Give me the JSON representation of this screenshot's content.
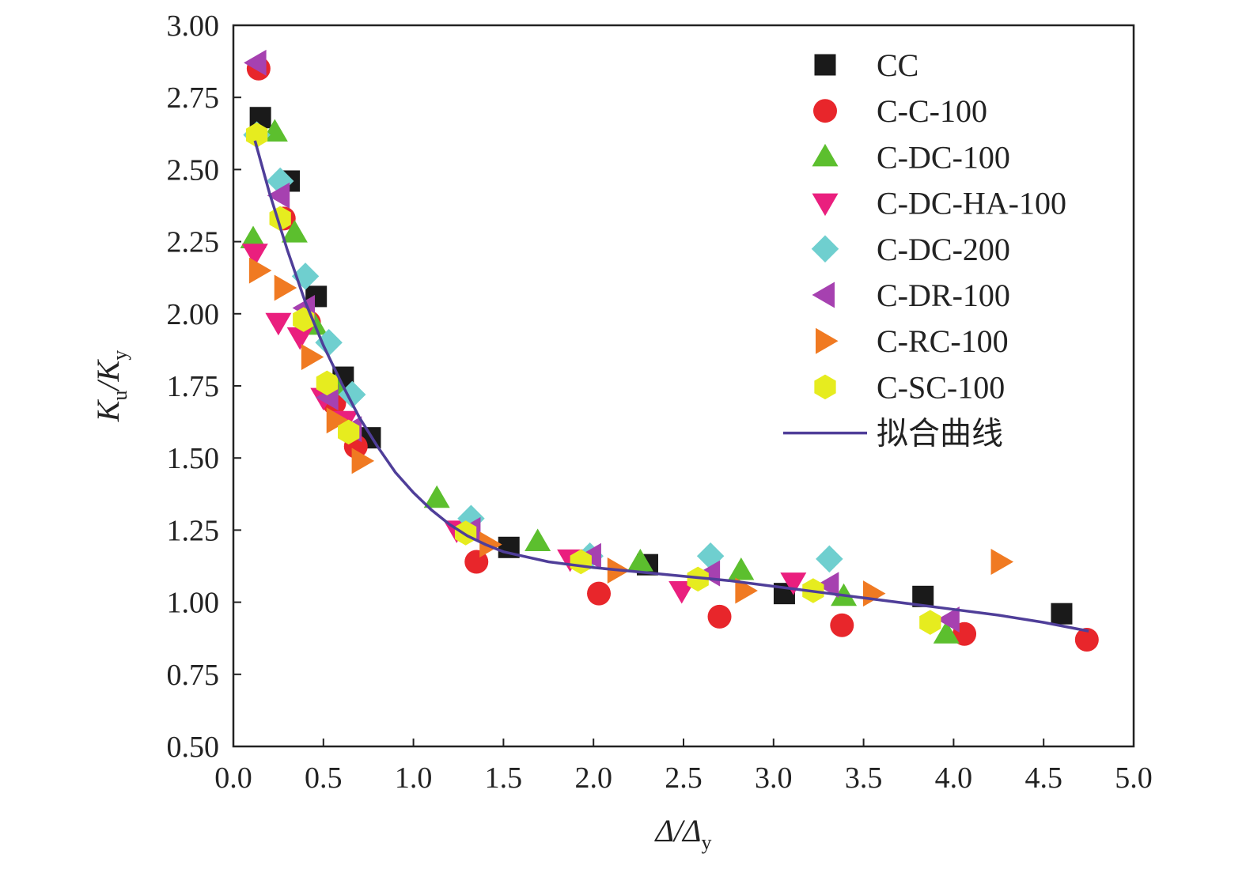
{
  "chart_data": {
    "type": "scatter",
    "title": "",
    "xlabel": {
      "main": "Δ/Δ",
      "sub": "y",
      "full": "Δ/Δy"
    },
    "ylabel": {
      "k1": "K",
      "s1": "u",
      "slash": "/",
      "k2": "K",
      "s2": "y",
      "full": "Ku/Ky"
    },
    "xlim": [
      0.0,
      5.0
    ],
    "ylim": [
      0.5,
      3.0
    ],
    "xticks": [
      0.0,
      0.5,
      1.0,
      1.5,
      2.0,
      2.5,
      3.0,
      3.5,
      4.0,
      4.5,
      5.0
    ],
    "xtick_labels": [
      "0.0",
      "0.5",
      "1.0",
      "1.5",
      "2.0",
      "2.5",
      "3.0",
      "3.5",
      "4.0",
      "4.5",
      "5.0"
    ],
    "yticks": [
      0.5,
      0.75,
      1.0,
      1.25,
      1.5,
      1.75,
      2.0,
      2.25,
      2.5,
      2.75,
      3.0
    ],
    "ytick_labels": [
      "0.50",
      "0.75",
      "1.00",
      "1.25",
      "1.50",
      "1.75",
      "2.00",
      "2.25",
      "2.50",
      "2.75",
      "3.00"
    ],
    "grid": false,
    "legend_position": "top-right",
    "series": [
      {
        "name": "CC",
        "marker": "square",
        "color": "#1a1a1a",
        "points": [
          [
            0.15,
            2.68
          ],
          [
            0.31,
            2.46
          ],
          [
            0.46,
            2.06
          ],
          [
            0.61,
            1.78
          ],
          [
            0.76,
            1.57
          ],
          [
            1.53,
            1.19
          ],
          [
            2.3,
            1.13
          ],
          [
            3.06,
            1.03
          ],
          [
            3.83,
            1.02
          ],
          [
            4.6,
            0.96
          ]
        ]
      },
      {
        "name": "C-C-100",
        "marker": "circle",
        "color": "#e8262b",
        "points": [
          [
            0.14,
            2.85
          ],
          [
            0.28,
            2.33
          ],
          [
            0.42,
            1.97
          ],
          [
            0.56,
            1.69
          ],
          [
            0.68,
            1.54
          ],
          [
            1.35,
            1.14
          ],
          [
            2.03,
            1.03
          ],
          [
            2.7,
            0.95
          ],
          [
            3.38,
            0.92
          ],
          [
            4.06,
            0.89
          ],
          [
            4.74,
            0.87
          ]
        ]
      },
      {
        "name": "C-DC-100",
        "marker": "triangle-up",
        "color": "#5cbf2e",
        "points": [
          [
            0.11,
            2.26
          ],
          [
            0.23,
            2.63
          ],
          [
            0.34,
            2.28
          ],
          [
            0.45,
            1.96
          ],
          [
            0.57,
            1.75
          ],
          [
            1.13,
            1.36
          ],
          [
            1.69,
            1.21
          ],
          [
            2.26,
            1.14
          ],
          [
            2.82,
            1.11
          ],
          [
            3.39,
            1.02
          ],
          [
            3.96,
            0.89
          ]
        ]
      },
      {
        "name": "C-DC-HA-100",
        "marker": "triangle-down",
        "color": "#ea1f7e",
        "points": [
          [
            0.12,
            2.21
          ],
          [
            0.25,
            1.97
          ],
          [
            0.37,
            1.92
          ],
          [
            0.5,
            1.71
          ],
          [
            0.62,
            1.63
          ],
          [
            1.24,
            1.25
          ],
          [
            1.87,
            1.15
          ],
          [
            2.49,
            1.04
          ],
          [
            3.11,
            1.07
          ]
        ]
      },
      {
        "name": "C-DC-200",
        "marker": "diamond",
        "color": "#6fcfcf",
        "points": [
          [
            0.13,
            2.62
          ],
          [
            0.26,
            2.46
          ],
          [
            0.4,
            2.13
          ],
          [
            0.53,
            1.9
          ],
          [
            0.66,
            1.72
          ],
          [
            1.32,
            1.29
          ],
          [
            1.98,
            1.16
          ],
          [
            2.65,
            1.16
          ],
          [
            3.31,
            1.15
          ]
        ]
      },
      {
        "name": "C-DR-100",
        "marker": "triangle-left",
        "color": "#a641b0",
        "points": [
          [
            0.13,
            2.87
          ],
          [
            0.26,
            2.41
          ],
          [
            0.4,
            2.02
          ],
          [
            0.53,
            1.71
          ],
          [
            0.66,
            1.6
          ],
          [
            1.32,
            1.25
          ],
          [
            1.99,
            1.16
          ],
          [
            2.65,
            1.1
          ],
          [
            3.31,
            1.06
          ],
          [
            3.98,
            0.94
          ]
        ]
      },
      {
        "name": "C-RC-100",
        "marker": "triangle-right",
        "color": "#f07a22",
        "points": [
          [
            0.14,
            2.15
          ],
          [
            0.28,
            2.09
          ],
          [
            0.43,
            1.85
          ],
          [
            0.57,
            1.63
          ],
          [
            0.71,
            1.49
          ],
          [
            1.42,
            1.2
          ],
          [
            2.13,
            1.11
          ],
          [
            2.84,
            1.04
          ],
          [
            3.55,
            1.03
          ],
          [
            4.26,
            1.14
          ]
        ]
      },
      {
        "name": "C-SC-100",
        "marker": "hexagon",
        "color": "#e6ec1f",
        "points": [
          [
            0.13,
            2.62
          ],
          [
            0.26,
            2.33
          ],
          [
            0.39,
            1.98
          ],
          [
            0.52,
            1.76
          ],
          [
            0.64,
            1.59
          ],
          [
            1.29,
            1.24
          ],
          [
            1.93,
            1.14
          ],
          [
            2.58,
            1.08
          ],
          [
            3.22,
            1.04
          ],
          [
            3.87,
            0.93
          ]
        ]
      }
    ],
    "fit_curve": {
      "name": "拟合曲线",
      "color": "#4f3e99",
      "points": [
        [
          0.12,
          2.6
        ],
        [
          0.2,
          2.42
        ],
        [
          0.3,
          2.22
        ],
        [
          0.4,
          2.04
        ],
        [
          0.5,
          1.89
        ],
        [
          0.6,
          1.76
        ],
        [
          0.7,
          1.64
        ],
        [
          0.8,
          1.54
        ],
        [
          0.9,
          1.45
        ],
        [
          1.0,
          1.38
        ],
        [
          1.1,
          1.32
        ],
        [
          1.2,
          1.27
        ],
        [
          1.3,
          1.23
        ],
        [
          1.4,
          1.2
        ],
        [
          1.5,
          1.175
        ],
        [
          1.75,
          1.14
        ],
        [
          2.0,
          1.12
        ],
        [
          2.25,
          1.105
        ],
        [
          2.5,
          1.09
        ],
        [
          2.75,
          1.075
        ],
        [
          3.0,
          1.055
        ],
        [
          3.25,
          1.035
        ],
        [
          3.5,
          1.015
        ],
        [
          3.75,
          0.995
        ],
        [
          4.0,
          0.975
        ],
        [
          4.25,
          0.955
        ],
        [
          4.5,
          0.93
        ],
        [
          4.75,
          0.9
        ]
      ]
    }
  }
}
